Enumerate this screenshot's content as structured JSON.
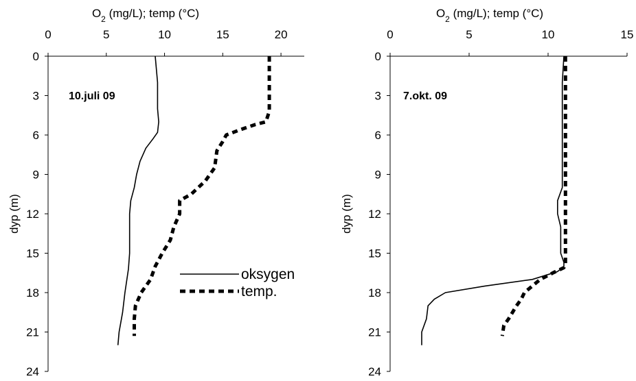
{
  "chart_data": [
    {
      "type": "line",
      "panel_label": "10.juli 09",
      "x_axis": {
        "label_prefix": "O",
        "label_sub": "2",
        "label_rest": " (mg/L); temp (°C)",
        "range": [
          0,
          22
        ],
        "ticks": [
          0,
          5,
          10,
          15,
          20
        ],
        "position": "top"
      },
      "y_axis": {
        "label": "dyp (m)",
        "range": [
          0,
          24
        ],
        "ticks": [
          0,
          3,
          6,
          9,
          12,
          15,
          18,
          21,
          24
        ],
        "inverted": true
      },
      "series": [
        {
          "name": "oksygen",
          "style": "solid",
          "points": [
            [
              9.2,
              0
            ],
            [
              9.4,
              2
            ],
            [
              9.4,
              4
            ],
            [
              9.5,
              5
            ],
            [
              9.4,
              5.8
            ],
            [
              9.0,
              6.3
            ],
            [
              8.4,
              7
            ],
            [
              7.9,
              8
            ],
            [
              7.6,
              9
            ],
            [
              7.4,
              10
            ],
            [
              7.1,
              11
            ],
            [
              7.0,
              12
            ],
            [
              7.0,
              15
            ],
            [
              6.9,
              16.2
            ],
            [
              6.6,
              18
            ],
            [
              6.4,
              19.5
            ],
            [
              6.1,
              21
            ],
            [
              6.0,
              22
            ]
          ]
        },
        {
          "name": "temp.",
          "style": "dashed",
          "points": [
            [
              19.0,
              0
            ],
            [
              19.0,
              4.2
            ],
            [
              18.7,
              5
            ],
            [
              17.8,
              5.2
            ],
            [
              16.5,
              5.6
            ],
            [
              15.3,
              6
            ],
            [
              15.0,
              6.5
            ],
            [
              14.5,
              7.2
            ],
            [
              14.3,
              8.5
            ],
            [
              13.5,
              9.5
            ],
            [
              12.3,
              10.5
            ],
            [
              11.3,
              11
            ],
            [
              11.3,
              12
            ],
            [
              10.8,
              13
            ],
            [
              10.5,
              14
            ],
            [
              9.8,
              15
            ],
            [
              9.2,
              16
            ],
            [
              8.8,
              17
            ],
            [
              8.0,
              18
            ],
            [
              7.5,
              19
            ],
            [
              7.4,
              20
            ],
            [
              7.4,
              21.3
            ]
          ]
        }
      ]
    },
    {
      "type": "line",
      "panel_label": "7.okt. 09",
      "x_axis": {
        "label_prefix": "O",
        "label_sub": "2",
        "label_rest": " (mg/L); temp (°C)",
        "range": [
          0,
          15
        ],
        "ticks": [
          0,
          5,
          10,
          15
        ],
        "position": "top"
      },
      "y_axis": {
        "label": "dyp (m)",
        "range": [
          0,
          24
        ],
        "ticks": [
          0,
          3,
          6,
          9,
          12,
          15,
          18,
          21,
          24
        ],
        "inverted": true
      },
      "series": [
        {
          "name": "oksygen",
          "style": "solid",
          "points": [
            [
              11.0,
              0
            ],
            [
              10.9,
              2
            ],
            [
              10.9,
              10
            ],
            [
              10.6,
              11
            ],
            [
              10.6,
              12
            ],
            [
              10.8,
              13
            ],
            [
              10.8,
              15
            ],
            [
              11.0,
              15.7
            ],
            [
              11.0,
              16.0
            ],
            [
              10.6,
              16.4
            ],
            [
              9.0,
              17
            ],
            [
              6.0,
              17.5
            ],
            [
              3.5,
              18
            ],
            [
              2.8,
              18.5
            ],
            [
              2.4,
              19
            ],
            [
              2.3,
              20
            ],
            [
              2.0,
              21
            ],
            [
              2.0,
              22
            ]
          ]
        },
        {
          "name": "temp.",
          "style": "dashed",
          "points": [
            [
              11.1,
              0
            ],
            [
              11.1,
              15.8
            ],
            [
              11.0,
              16.1
            ],
            [
              10.3,
              16.5
            ],
            [
              9.5,
              17.0
            ],
            [
              9.0,
              17.5
            ],
            [
              8.5,
              18
            ],
            [
              8.3,
              18.5
            ],
            [
              8.0,
              19
            ],
            [
              7.5,
              20
            ],
            [
              7.2,
              20.5
            ],
            [
              7.1,
              21.3
            ]
          ]
        }
      ]
    }
  ]
}
